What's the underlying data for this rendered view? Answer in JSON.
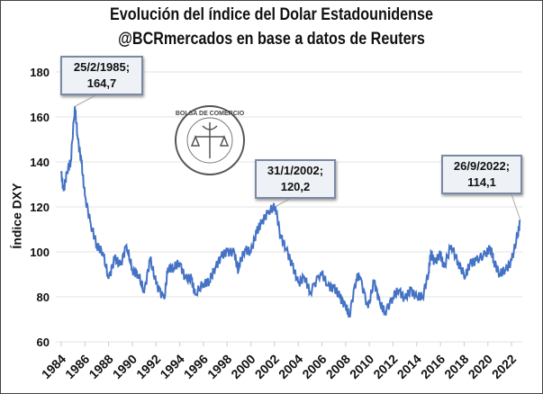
{
  "chart_data": {
    "type": "line",
    "title": "Evolución del índice del Dolar Estadounidense",
    "subtitle": "@BCRmercados en base a datos de Reuters",
    "xlabel": "",
    "ylabel": "Índice DXY",
    "xlim": [
      1984,
      2022.75
    ],
    "ylim": [
      60,
      180
    ],
    "yticks": [
      "60",
      "80",
      "100",
      "120",
      "140",
      "160",
      "180"
    ],
    "xticks": [
      "1984",
      "1986",
      "1988",
      "1990",
      "1992",
      "1994",
      "1996",
      "1998",
      "2000",
      "2002",
      "2004",
      "2006",
      "2008",
      "2010",
      "2012",
      "2014",
      "2016",
      "2018",
      "2020",
      "2022"
    ],
    "grid": "horizontal",
    "line_color": "#4472c4",
    "series": [
      {
        "name": "DXY",
        "x": [
          1984.0,
          1984.2,
          1984.5,
          1984.8,
          1985.15,
          1985.4,
          1985.7,
          1986.0,
          1986.5,
          1987.0,
          1987.5,
          1988.0,
          1988.5,
          1989.0,
          1989.5,
          1990.0,
          1990.5,
          1991.0,
          1991.5,
          1992.0,
          1992.7,
          1993.0,
          1993.5,
          1994.0,
          1994.5,
          1995.0,
          1995.3,
          1996.0,
          1996.5,
          1997.0,
          1997.5,
          1998.0,
          1998.6,
          1998.9,
          1999.0,
          1999.5,
          2000.0,
          2000.5,
          2000.9,
          2001.5,
          2002.08,
          2002.5,
          2003.0,
          2003.5,
          2004.0,
          2004.5,
          2005.0,
          2005.9,
          2006.5,
          2007.0,
          2007.5,
          2008.0,
          2008.3,
          2008.9,
          2009.2,
          2009.9,
          2010.4,
          2010.9,
          2011.3,
          2012.0,
          2012.5,
          2013.0,
          2013.5,
          2014.0,
          2014.5,
          2015.0,
          2015.2,
          2015.5,
          2016.0,
          2016.3,
          2016.9,
          2017.5,
          2018.1,
          2018.5,
          2019.0,
          2019.8,
          2020.2,
          2020.5,
          2021.0,
          2021.5,
          2022.0,
          2022.5,
          2022.74
        ],
        "y": [
          135,
          127,
          136,
          140,
          164.7,
          150,
          140,
          125,
          112,
          103,
          100,
          88,
          97,
          94,
          103,
          92,
          90,
          82,
          97,
          86,
          79,
          93,
          93,
          95,
          88,
          88,
          81,
          86,
          87,
          93,
          98,
          100,
          100,
          92,
          94,
          101,
          100,
          109,
          113,
          118,
          120.2,
          107,
          101,
          94,
          86,
          89,
          82,
          91,
          85,
          84,
          80,
          76,
          71.5,
          88,
          89,
          75,
          87,
          77,
          73,
          80,
          83,
          79,
          83,
          80,
          80,
          91,
          100,
          95,
          99,
          93,
          103,
          95,
          89,
          95,
          96,
          99,
          102,
          96,
          90,
          92,
          96,
          107,
          114.1
        ]
      }
    ],
    "annotations": [
      {
        "label_date": "25/2/1985;",
        "label_value": "164,7",
        "x": 1985.15,
        "y": 164.7
      },
      {
        "label_date": "31/1/2002;",
        "label_value": "120,2",
        "x": 2002.08,
        "y": 120.2
      },
      {
        "label_date": "26/9/2022;",
        "label_value": "114,1",
        "x": 2022.74,
        "y": 114.1
      }
    ],
    "watermark": "BOLSA DE COMERCIO DE ROSARIO"
  }
}
